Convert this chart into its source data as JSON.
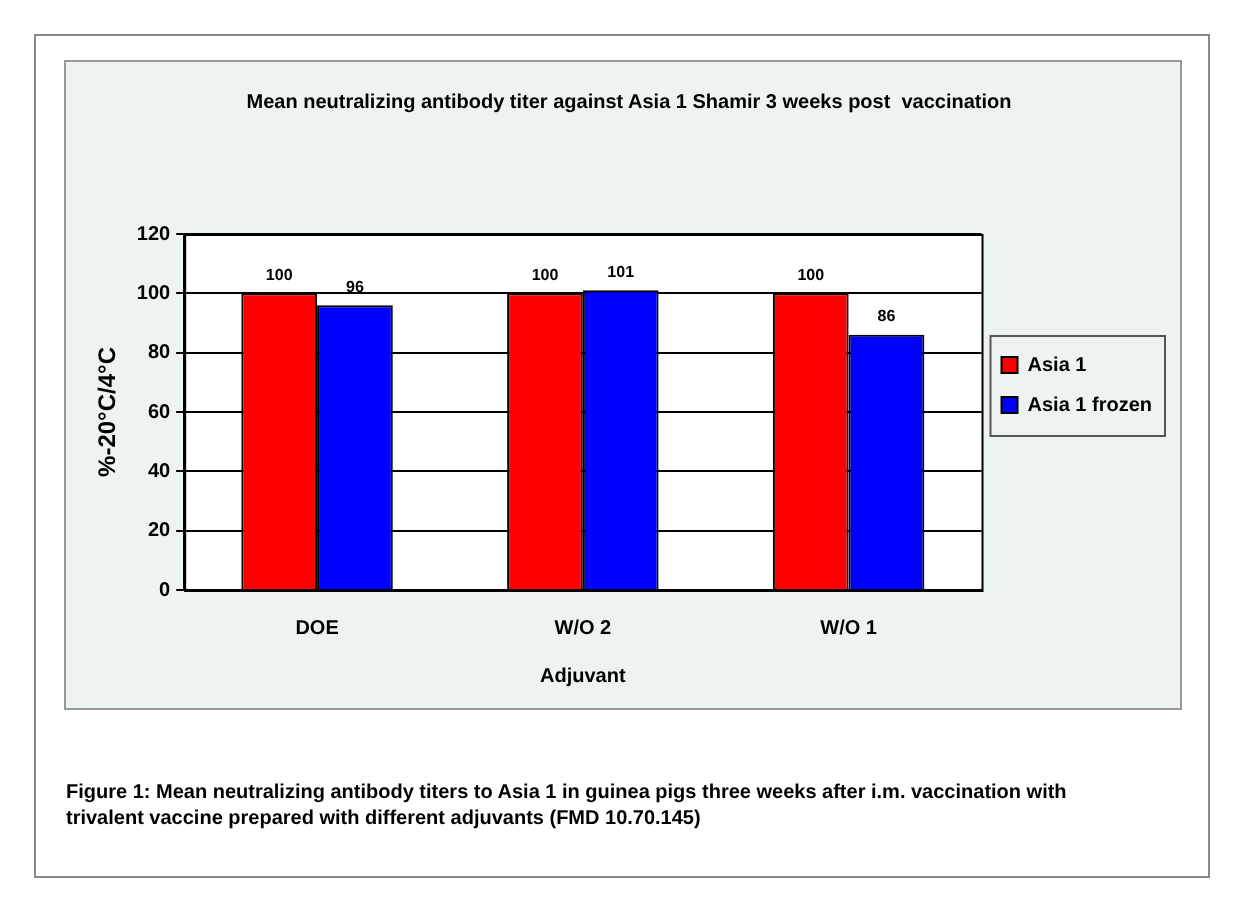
{
  "chart_data": {
    "type": "bar",
    "title": "Mean neutralizing antibody titer against Asia 1 Shamir 3 weeks post  vaccination",
    "xlabel": "Adjuvant",
    "ylabel": "%-20°C/4°C",
    "categories": [
      "DOE",
      "W/O 2",
      "W/O 1"
    ],
    "series": [
      {
        "name": "Asia 1",
        "color": "#ff0000",
        "values": [
          100,
          100,
          100
        ]
      },
      {
        "name": "Asia 1 frozen",
        "color": "#0000ff",
        "values": [
          96,
          101,
          86
        ]
      }
    ],
    "ylim": [
      0,
      120
    ],
    "yticks": [
      0,
      20,
      40,
      60,
      80,
      100,
      120
    ],
    "grid": "y",
    "legend": "right",
    "data_labels": true,
    "annotations": [
      "Figure 1:  Mean neutralizing antibody titers to Asia 1 in guinea pigs three weeks after i.m. vaccination with trivalent vaccine prepared with different adjuvants (FMD 10.70.145)"
    ]
  }
}
